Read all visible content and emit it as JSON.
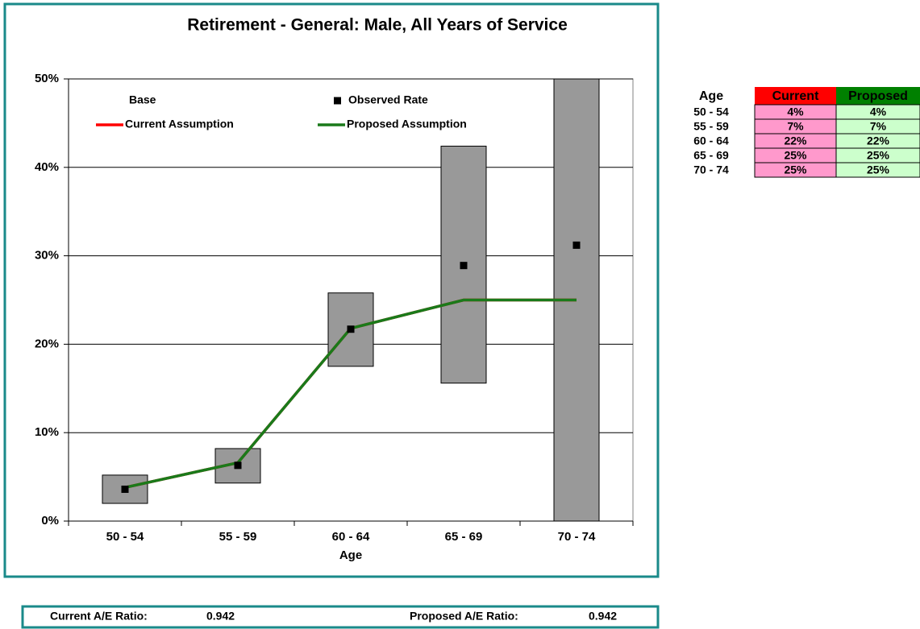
{
  "chart_data": {
    "type": "combo",
    "title": "Retirement - General: Male, All Years of Service",
    "x_label": "Age",
    "categories": [
      "50 - 54",
      "55 - 59",
      "60 - 64",
      "65 - 69",
      "70 - 74"
    ],
    "ylim": [
      0,
      50
    ],
    "yticks": [
      {
        "value": 0,
        "label": "0%"
      },
      {
        "value": 10,
        "label": "10%"
      },
      {
        "value": 20,
        "label": "20%"
      },
      {
        "value": 30,
        "label": "30%"
      },
      {
        "value": 40,
        "label": "40%"
      },
      {
        "value": 50,
        "label": "50%"
      }
    ],
    "grid": true,
    "series": [
      {
        "name": "Base",
        "type": "range",
        "color": "#999999",
        "low": [
          2.0,
          4.3,
          17.5,
          15.6,
          0
        ],
        "high": [
          5.2,
          8.2,
          25.8,
          42.4,
          50
        ]
      },
      {
        "name": "Observed Rate",
        "type": "marker",
        "color": "#000000",
        "values": [
          3.6,
          6.3,
          21.7,
          28.9,
          31.2
        ]
      },
      {
        "name": "Current Assumption",
        "type": "line",
        "color": "#ff0000",
        "values": [
          3.8,
          6.6,
          21.8,
          25,
          25
        ]
      },
      {
        "name": "Proposed Assumption",
        "type": "line",
        "color": "#1a7a1a",
        "values": [
          3.8,
          6.6,
          21.8,
          25,
          25
        ]
      }
    ]
  },
  "table": {
    "header": [
      "Age",
      "Current",
      "Proposed"
    ],
    "rows": [
      [
        "50 - 54",
        "4%",
        "4%"
      ],
      [
        "55 - 59",
        "7%",
        "7%"
      ],
      [
        "60 - 64",
        "22%",
        "22%"
      ],
      [
        "65 - 69",
        "25%",
        "25%"
      ],
      [
        "70 - 74",
        "25%",
        "25%"
      ]
    ]
  },
  "footer": {
    "current_label": "Current A/E Ratio:",
    "current_value": 0.942,
    "proposed_label": "Proposed A/E Ratio:",
    "proposed_value": 0.942
  }
}
